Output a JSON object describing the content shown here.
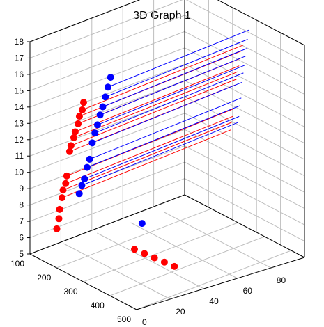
{
  "chart_data": {
    "type": "scatter",
    "title": "3D Graph 1",
    "axes": {
      "vertical": {
        "min": 5,
        "max": 18,
        "ticks": [
          5,
          6,
          7,
          8,
          9,
          10,
          11,
          12,
          13,
          14,
          15,
          16,
          17,
          18
        ],
        "labels": [
          "5",
          "6",
          "7",
          "8",
          "9",
          "10",
          "11",
          "12",
          "13",
          "14",
          "15",
          "16",
          "17",
          "18"
        ]
      },
      "left": {
        "min": 100,
        "max": 500,
        "ticks": [
          100,
          200,
          300,
          400,
          500
        ],
        "labels": [
          "100",
          "200",
          "300",
          "400",
          "500"
        ]
      },
      "right": {
        "min": 0,
        "max": 100,
        "ticks": [
          0,
          20,
          40,
          60,
          80
        ],
        "labels": [
          "0",
          "20",
          "40",
          "60",
          "80"
        ]
      }
    },
    "grid": true,
    "series": [
      {
        "color": "#ff0000",
        "points": [
          [
            220,
            86,
            14.8
          ],
          [
            215,
            86,
            14.3
          ],
          [
            210,
            87,
            13.9
          ],
          [
            205,
            87,
            13.4
          ],
          [
            200,
            88,
            12.9
          ],
          [
            195,
            88,
            12.5
          ],
          [
            190,
            89,
            12.0
          ],
          [
            185,
            89,
            11.6
          ],
          [
            180,
            90,
            10.1
          ],
          [
            176,
            90,
            9.6
          ],
          [
            172,
            91,
            9.2
          ],
          [
            168,
            91,
            8.7
          ],
          [
            165,
            92,
            8.0
          ],
          [
            162,
            92,
            7.4
          ],
          [
            160,
            93,
            6.8
          ],
          [
            260,
            60,
            5.2
          ],
          [
            280,
            57,
            5.0
          ],
          [
            300,
            54,
            4.8
          ],
          [
            320,
            51,
            4.6
          ],
          [
            340,
            48,
            4.4
          ]
        ],
        "stems": [
          14.3,
          13.9,
          13.4,
          12.9,
          12.5,
          12.0,
          11.6,
          10.1,
          9.6,
          9.2,
          8.7
        ]
      },
      {
        "color": "#0000ff",
        "points": [
          [
            240,
            72,
            16.0
          ],
          [
            236,
            73,
            15.4
          ],
          [
            232,
            74,
            14.8
          ],
          [
            228,
            75,
            14.2
          ],
          [
            224,
            76,
            13.7
          ],
          [
            220,
            77,
            13.1
          ],
          [
            216,
            78,
            12.6
          ],
          [
            212,
            79,
            12.0
          ],
          [
            208,
            80,
            11.0
          ],
          [
            204,
            81,
            10.5
          ],
          [
            200,
            82,
            9.8
          ],
          [
            196,
            83,
            9.4
          ],
          [
            192,
            84,
            8.9
          ],
          [
            300,
            62,
            7.2
          ]
        ],
        "stems": [
          15.4,
          14.8,
          14.2,
          13.7,
          13.1,
          12.6,
          12.0,
          11.0,
          10.5,
          9.8,
          9.4
        ]
      }
    ]
  }
}
